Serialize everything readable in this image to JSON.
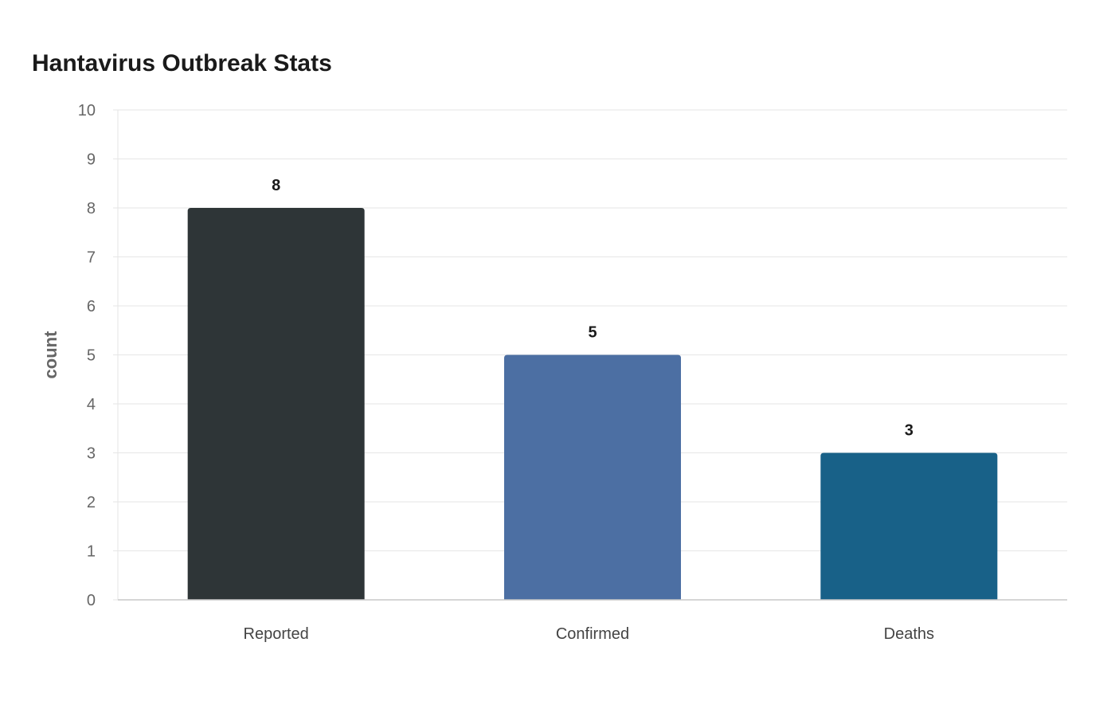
{
  "chart_data": {
    "type": "bar",
    "title": "Hantavirus Outbreak Stats",
    "xlabel": "",
    "ylabel": "count",
    "categories": [
      "Reported",
      "Confirmed",
      "Deaths"
    ],
    "values": [
      8,
      5,
      3
    ],
    "data_labels": [
      "8",
      "5",
      "3"
    ],
    "colors": [
      "#2e3537",
      "#4c6fa3",
      "#186188"
    ],
    "ylim": [
      0,
      10
    ],
    "yticks": [
      0,
      1,
      2,
      3,
      4,
      5,
      6,
      7,
      8,
      9,
      10
    ],
    "grid": true,
    "legend": "none"
  }
}
